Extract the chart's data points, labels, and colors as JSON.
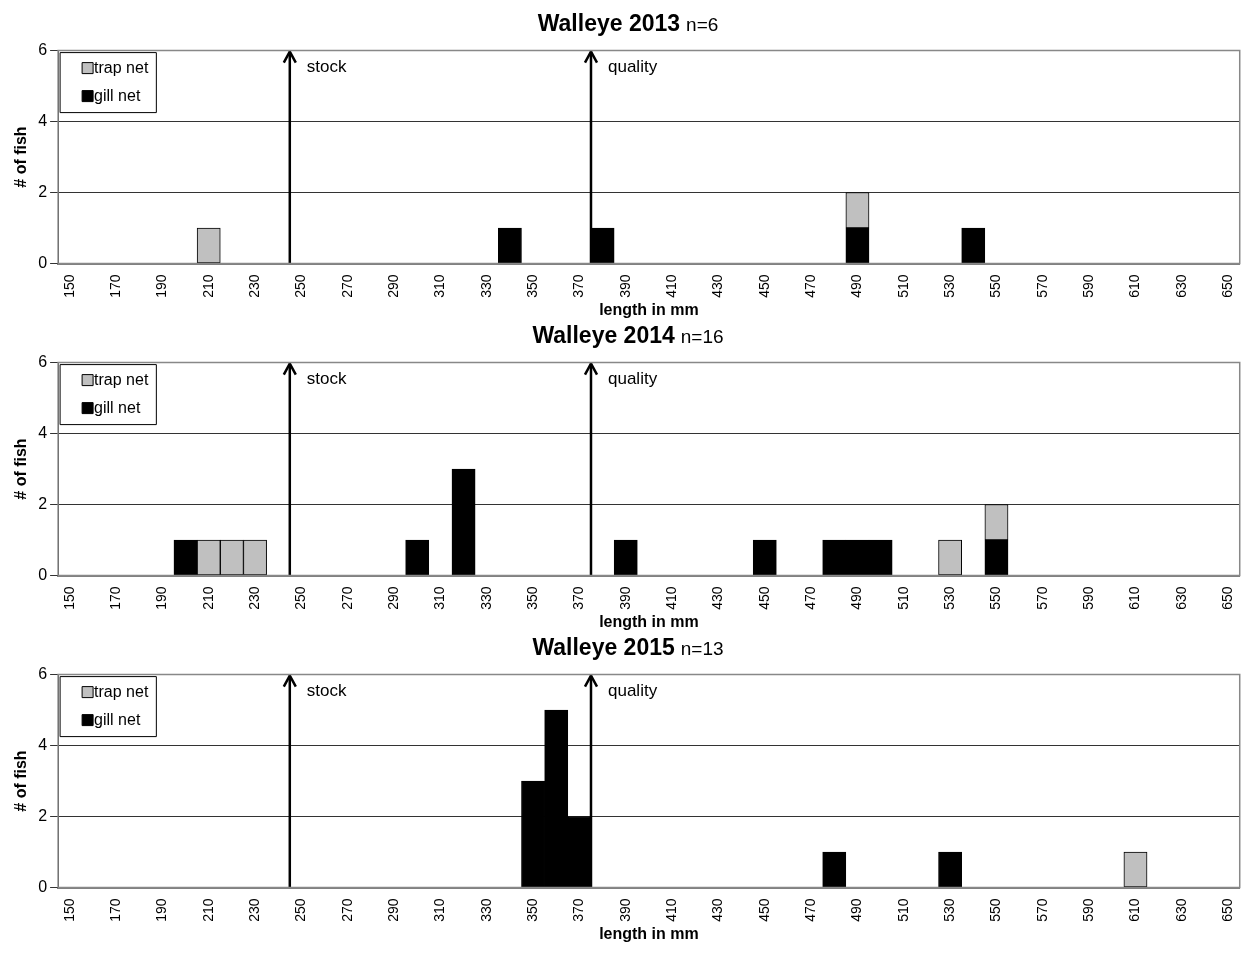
{
  "chart_data": [
    {
      "type": "bar",
      "title": "Walleye 2013",
      "subtitle": "n=6",
      "xlabel": "length in mm",
      "ylabel": "# of fish",
      "x": [
        150,
        160,
        170,
        180,
        190,
        200,
        210,
        220,
        230,
        240,
        250,
        260,
        270,
        280,
        290,
        300,
        310,
        320,
        330,
        340,
        350,
        360,
        370,
        380,
        390,
        400,
        410,
        420,
        430,
        440,
        450,
        460,
        470,
        480,
        490,
        500,
        510,
        520,
        530,
        540,
        550,
        560,
        570,
        580,
        590,
        600,
        610,
        620,
        630,
        640,
        650
      ],
      "series": [
        {
          "name": "gill net",
          "color": "#000000",
          "values": [
            0,
            0,
            0,
            0,
            0,
            0,
            0,
            0,
            0,
            0,
            0,
            0,
            0,
            0,
            0,
            0,
            0,
            0,
            0,
            1,
            0,
            0,
            0,
            1,
            0,
            0,
            0,
            0,
            0,
            0,
            0,
            0,
            0,
            0,
            1,
            0,
            0,
            0,
            0,
            1,
            0,
            0,
            0,
            0,
            0,
            0,
            0,
            0,
            0,
            0,
            0
          ]
        },
        {
          "name": "trap net",
          "color": "#c0c0c0",
          "values": [
            0,
            0,
            0,
            0,
            0,
            0,
            1,
            0,
            0,
            0,
            0,
            0,
            0,
            0,
            0,
            0,
            0,
            0,
            0,
            0,
            0,
            0,
            0,
            0,
            0,
            0,
            0,
            0,
            0,
            0,
            0,
            0,
            0,
            0,
            1,
            0,
            0,
            0,
            0,
            0,
            0,
            0,
            0,
            0,
            0,
            0,
            0,
            0,
            0,
            0,
            0
          ]
        }
      ],
      "stacked": true,
      "xlim": [
        145,
        655
      ],
      "xticks": [
        150,
        170,
        190,
        210,
        230,
        250,
        270,
        290,
        310,
        330,
        350,
        370,
        390,
        410,
        430,
        450,
        470,
        490,
        510,
        530,
        550,
        570,
        590,
        610,
        630,
        650
      ],
      "ylim": [
        0,
        6
      ],
      "yticks": [
        0,
        2,
        4,
        6
      ],
      "grid": "y",
      "legend": "top left",
      "ref_lines": [
        {
          "axis": "x",
          "value": 245,
          "label": "stock"
        },
        {
          "axis": "x",
          "value": 375,
          "label": "quality"
        }
      ]
    },
    {
      "type": "bar",
      "title": "Walleye 2014",
      "subtitle": "n=16",
      "xlabel": "length in mm",
      "ylabel": "# of fish",
      "x": [
        150,
        160,
        170,
        180,
        190,
        200,
        210,
        220,
        230,
        240,
        250,
        260,
        270,
        280,
        290,
        300,
        310,
        320,
        330,
        340,
        350,
        360,
        370,
        380,
        390,
        400,
        410,
        420,
        430,
        440,
        450,
        460,
        470,
        480,
        490,
        500,
        510,
        520,
        530,
        540,
        550,
        560,
        570,
        580,
        590,
        600,
        610,
        620,
        630,
        640,
        650
      ],
      "series": [
        {
          "name": "gill net",
          "color": "#000000",
          "values": [
            0,
            0,
            0,
            0,
            0,
            1,
            0,
            0,
            0,
            0,
            0,
            0,
            0,
            0,
            0,
            1,
            0,
            3,
            0,
            0,
            0,
            0,
            0,
            0,
            1,
            0,
            0,
            0,
            0,
            0,
            1,
            0,
            0,
            1,
            1,
            1,
            0,
            0,
            0,
            0,
            1,
            0,
            0,
            0,
            0,
            0,
            0,
            0,
            0,
            0,
            0
          ]
        },
        {
          "name": "trap net",
          "color": "#c0c0c0",
          "values": [
            0,
            0,
            0,
            0,
            0,
            0,
            1,
            1,
            1,
            0,
            0,
            0,
            0,
            0,
            0,
            0,
            0,
            0,
            0,
            0,
            0,
            0,
            0,
            0,
            0,
            0,
            0,
            0,
            0,
            0,
            0,
            0,
            0,
            0,
            0,
            0,
            0,
            0,
            1,
            0,
            1,
            0,
            0,
            0,
            0,
            0,
            0,
            0,
            0,
            0,
            0
          ]
        }
      ],
      "stacked": true,
      "xlim": [
        145,
        655
      ],
      "xticks": [
        150,
        170,
        190,
        210,
        230,
        250,
        270,
        290,
        310,
        330,
        350,
        370,
        390,
        410,
        430,
        450,
        470,
        490,
        510,
        530,
        550,
        570,
        590,
        610,
        630,
        650
      ],
      "ylim": [
        0,
        6
      ],
      "yticks": [
        0,
        2,
        4,
        6
      ],
      "grid": "y",
      "legend": "top left",
      "ref_lines": [
        {
          "axis": "x",
          "value": 245,
          "label": "stock"
        },
        {
          "axis": "x",
          "value": 375,
          "label": "quality"
        }
      ]
    },
    {
      "type": "bar",
      "title": "Walleye 2015",
      "subtitle": "n=13",
      "xlabel": "length in mm",
      "ylabel": "# of fish",
      "x": [
        150,
        160,
        170,
        180,
        190,
        200,
        210,
        220,
        230,
        240,
        250,
        260,
        270,
        280,
        290,
        300,
        310,
        320,
        330,
        340,
        350,
        360,
        370,
        380,
        390,
        400,
        410,
        420,
        430,
        440,
        450,
        460,
        470,
        480,
        490,
        500,
        510,
        520,
        530,
        540,
        550,
        560,
        570,
        580,
        590,
        600,
        610,
        620,
        630,
        640,
        650
      ],
      "series": [
        {
          "name": "gill net",
          "color": "#000000",
          "values": [
            0,
            0,
            0,
            0,
            0,
            0,
            0,
            0,
            0,
            0,
            0,
            0,
            0,
            0,
            0,
            0,
            0,
            0,
            0,
            0,
            3,
            5,
            2,
            0,
            0,
            0,
            0,
            0,
            0,
            0,
            0,
            0,
            0,
            1,
            0,
            0,
            0,
            0,
            1,
            0,
            0,
            0,
            0,
            0,
            0,
            0,
            0,
            0,
            0,
            0,
            0
          ]
        },
        {
          "name": "trap net",
          "color": "#c0c0c0",
          "values": [
            0,
            0,
            0,
            0,
            0,
            0,
            0,
            0,
            0,
            0,
            0,
            0,
            0,
            0,
            0,
            0,
            0,
            0,
            0,
            0,
            0,
            0,
            0,
            0,
            0,
            0,
            0,
            0,
            0,
            0,
            0,
            0,
            0,
            0,
            0,
            0,
            0,
            0,
            0,
            0,
            0,
            0,
            0,
            0,
            0,
            0,
            1,
            0,
            0,
            0,
            0
          ]
        }
      ],
      "stacked": true,
      "xlim": [
        145,
        655
      ],
      "xticks": [
        150,
        170,
        190,
        210,
        230,
        250,
        270,
        290,
        310,
        330,
        350,
        370,
        390,
        410,
        430,
        450,
        470,
        490,
        510,
        530,
        550,
        570,
        590,
        610,
        630,
        650
      ],
      "ylim": [
        0,
        6
      ],
      "yticks": [
        0,
        2,
        4,
        6
      ],
      "grid": "y",
      "legend": "top left",
      "ref_lines": [
        {
          "axis": "x",
          "value": 245,
          "label": "stock"
        },
        {
          "axis": "x",
          "value": 375,
          "label": "quality"
        }
      ]
    }
  ]
}
